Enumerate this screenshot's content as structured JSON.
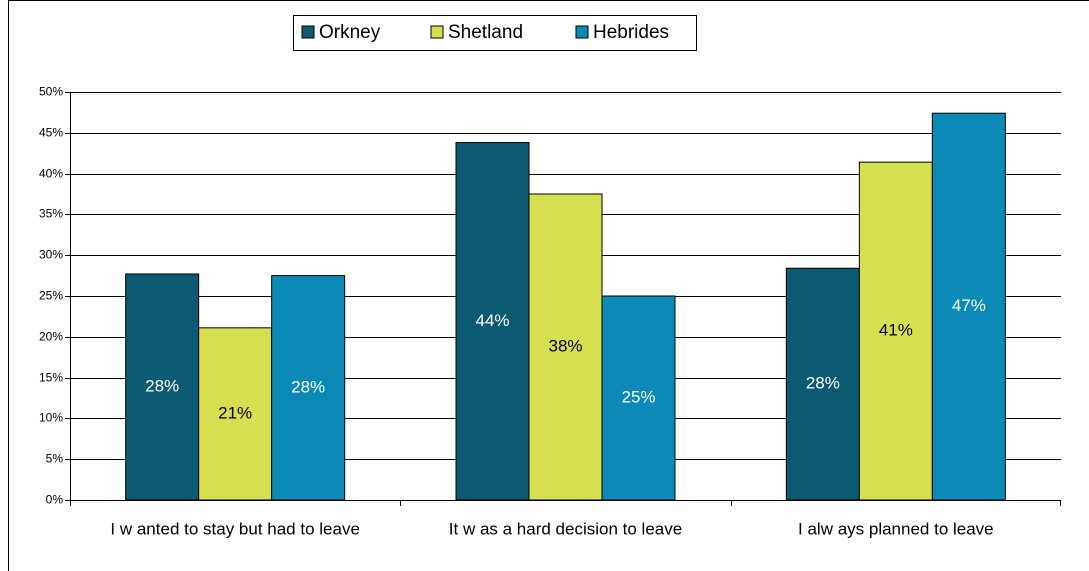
{
  "chart_data": {
    "type": "bar",
    "categories": [
      "I w anted to stay but had to leave",
      "It w as a hard decision to leave",
      "I alw ays planned to leave"
    ],
    "series": [
      {
        "name": "Orkney",
        "color": "#0b5a72",
        "values": [
          27.7,
          43.8,
          28.4
        ],
        "value_labels": [
          "28%",
          "44%",
          "28%"
        ]
      },
      {
        "name": "Shetland",
        "color": "#d5df4f",
        "values": [
          21.1,
          37.5,
          41.4
        ],
        "value_labels": [
          "21%",
          "38%",
          "41%"
        ]
      },
      {
        "name": "Hebrides",
        "color": "#0b8ab8",
        "values": [
          27.5,
          25.0,
          47.4
        ],
        "value_labels": [
          "28%",
          "25%",
          "47%"
        ]
      }
    ],
    "ylim": [
      0,
      50
    ],
    "yticks": [
      {
        "value": 0,
        "label": "0%"
      },
      {
        "value": 5,
        "label": "5%"
      },
      {
        "value": 10,
        "label": "10%"
      },
      {
        "value": 15,
        "label": "15%"
      },
      {
        "value": 20,
        "label": "20%"
      },
      {
        "value": 25,
        "label": "25%"
      },
      {
        "value": 30,
        "label": "30%"
      },
      {
        "value": 35,
        "label": "35%"
      },
      {
        "value": 40,
        "label": "40%"
      },
      {
        "value": 45,
        "label": "45%"
      },
      {
        "value": 50,
        "label": "50%"
      }
    ],
    "grid": true,
    "legend": "top"
  }
}
